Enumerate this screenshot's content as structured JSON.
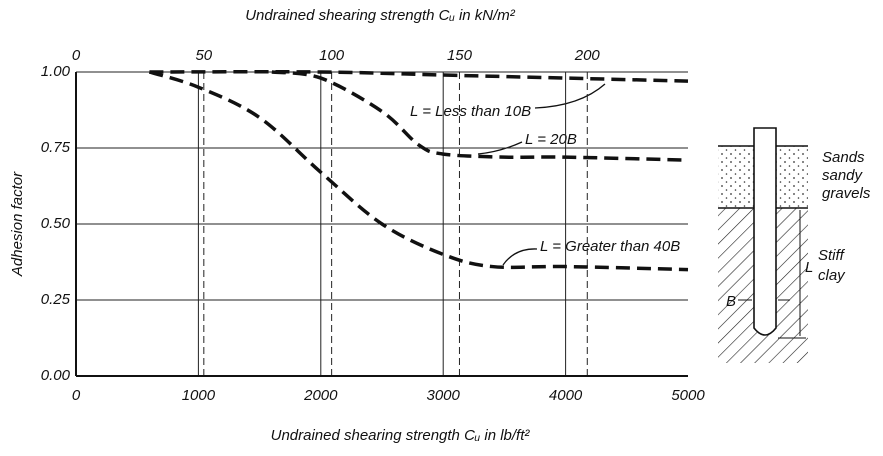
{
  "chart_data": {
    "type": "line",
    "x_label": "Undrained shearing strength Cᵤ in lb/ft²",
    "x2_label": "Undrained shearing strength Cᵤ in kN/m²",
    "y_label": "Adhesion factor",
    "xlim": [
      0,
      5000
    ],
    "xticks": [
      0,
      1000,
      2000,
      3000,
      4000,
      5000
    ],
    "x2lim": [
      0,
      239.4
    ],
    "x2ticks": [
      0,
      50,
      100,
      150,
      200
    ],
    "ylim": [
      0,
      1
    ],
    "yticks": [
      {
        "value": 0,
        "label": "0.00"
      },
      0.25,
      {
        "value": 0.5,
        "label": "0.50"
      },
      0.75,
      {
        "value": 1,
        "label": "1.00"
      }
    ],
    "grid": true,
    "series": [
      {
        "name": "L = Less than 10B",
        "color": "#111111",
        "x": [
          600,
          2000,
          3000,
          4000,
          5000
        ],
        "values": [
          1.0,
          1.0,
          0.99,
          0.98,
          0.97
        ]
      },
      {
        "name": "L = 20B",
        "color": "#111111",
        "x": [
          1600,
          2000,
          2500,
          2800,
          3000,
          3500,
          4000,
          5000
        ],
        "values": [
          1.0,
          0.98,
          0.87,
          0.76,
          0.73,
          0.72,
          0.72,
          0.71
        ]
      },
      {
        "name": "L = Greater than 40B",
        "color": "#111111",
        "x": [
          600,
          1000,
          1500,
          2000,
          2500,
          3000,
          3400,
          4000,
          5000
        ],
        "values": [
          1.0,
          0.95,
          0.85,
          0.67,
          0.5,
          0.4,
          0.36,
          0.36,
          0.35
        ]
      }
    ]
  },
  "diagram": {
    "sand_label": [
      "Sands",
      "sandy",
      "gravels"
    ],
    "clay_label": [
      "Stiff",
      "clay"
    ],
    "length_label": "L",
    "width_label": "B"
  }
}
